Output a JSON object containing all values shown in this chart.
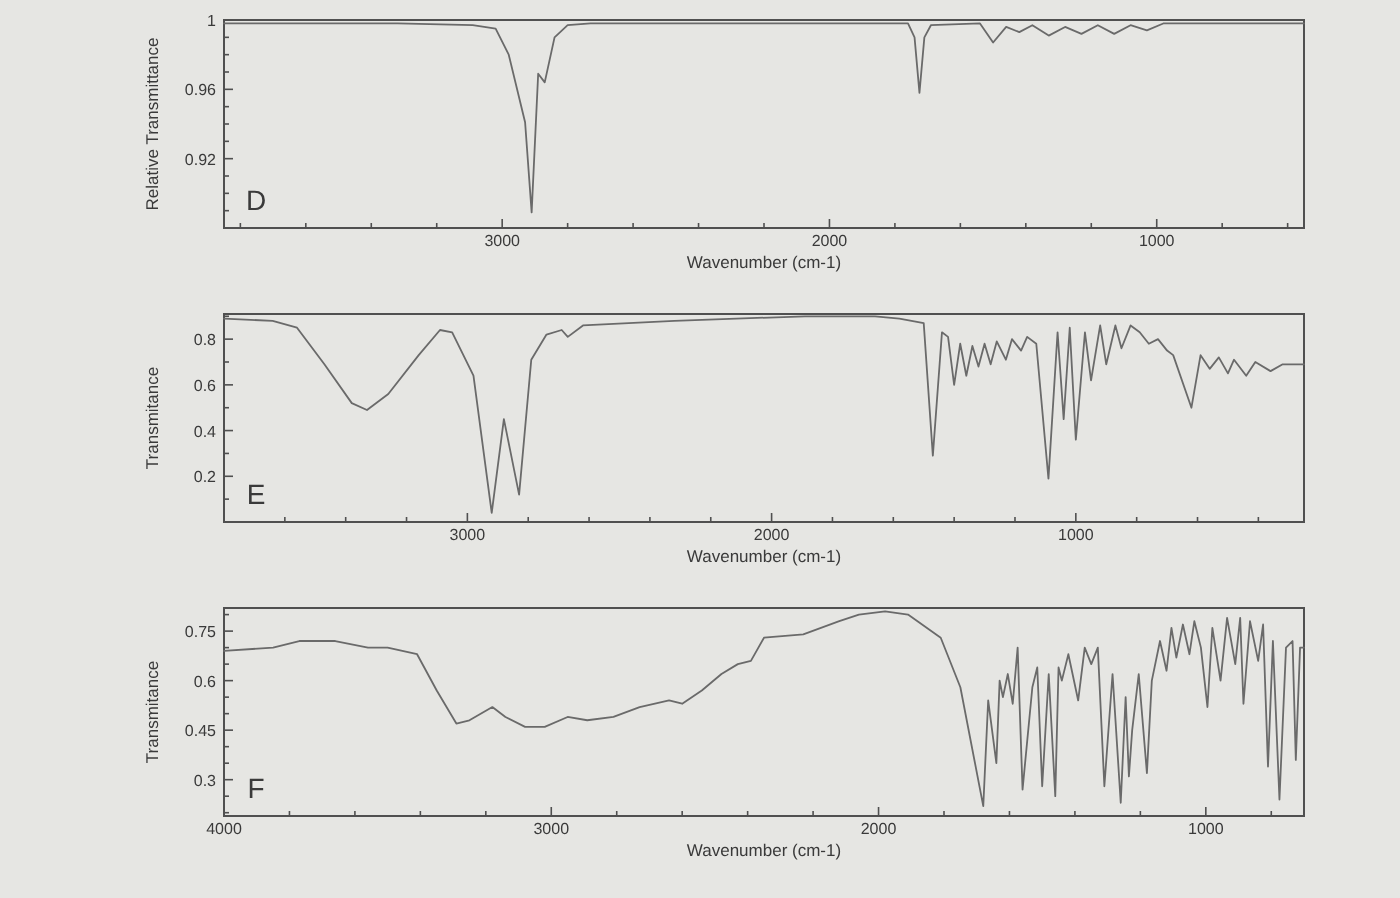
{
  "chart_data": [
    {
      "type": "line",
      "annotations": [
        "D"
      ],
      "xlabel": "Wavenumber (cm-1)",
      "ylabel": "Relative Transmittance",
      "xlim": [
        3850,
        550
      ],
      "xticks": [
        {
          "value": 3800,
          "label": null
        },
        {
          "value": 3600,
          "label": null
        },
        {
          "value": 3400,
          "label": null
        },
        {
          "value": 3200,
          "label": null
        },
        3000,
        {
          "value": 2800,
          "label": null
        },
        {
          "value": 2600,
          "label": null
        },
        {
          "value": 2400,
          "label": null
        },
        {
          "value": 2200,
          "label": null
        },
        2000,
        {
          "value": 1800,
          "label": null
        },
        {
          "value": 1600,
          "label": null
        },
        {
          "value": 1400,
          "label": null
        },
        {
          "value": 1200,
          "label": null
        },
        1000,
        {
          "value": 800,
          "label": null
        },
        {
          "value": 600,
          "label": null
        }
      ],
      "ylim": [
        0.88,
        1
      ],
      "yticks": [
        {
          "value": 0.89,
          "label": null
        },
        {
          "value": 0.9,
          "label": null
        },
        {
          "value": 0.91,
          "label": null
        },
        0.92,
        {
          "value": 0.93,
          "label": null
        },
        {
          "value": 0.94,
          "label": null
        },
        {
          "value": 0.95,
          "label": null
        },
        0.96,
        {
          "value": 0.97,
          "label": null
        },
        {
          "value": 0.98,
          "label": null
        },
        {
          "value": 0.99,
          "label": null
        },
        1
      ],
      "series": [
        {
          "color": "#6a6a6a",
          "x": [
            3850,
            3320,
            3090,
            3020,
            2980,
            2930,
            2910,
            2890,
            2870,
            2840,
            2800,
            2730,
            1760,
            1740,
            1725,
            1710,
            1690,
            1540,
            1500,
            1460,
            1420,
            1380,
            1330,
            1280,
            1230,
            1180,
            1130,
            1080,
            1030,
            980,
            550
          ],
          "values": [
            0.998,
            0.998,
            0.997,
            0.995,
            0.98,
            0.941,
            0.889,
            0.969,
            0.964,
            0.99,
            0.997,
            0.998,
            0.998,
            0.99,
            0.958,
            0.99,
            0.997,
            0.998,
            0.987,
            0.996,
            0.993,
            0.997,
            0.991,
            0.996,
            0.992,
            0.997,
            0.992,
            0.997,
            0.994,
            0.998,
            0.998
          ]
        }
      ]
    },
    {
      "type": "line",
      "annotations": [
        "E"
      ],
      "xlabel": "Wavenumber (cm-1)",
      "ylabel": "Transmitance",
      "xlim": [
        3800,
        250
      ],
      "xticks": [
        {
          "value": 3600,
          "label": null
        },
        {
          "value": 3400,
          "label": null
        },
        {
          "value": 3200,
          "label": null
        },
        3000,
        {
          "value": 2800,
          "label": null
        },
        {
          "value": 2600,
          "label": null
        },
        {
          "value": 2400,
          "label": null
        },
        {
          "value": 2200,
          "label": null
        },
        2000,
        {
          "value": 1800,
          "label": null
        },
        {
          "value": 1600,
          "label": null
        },
        {
          "value": 1400,
          "label": null
        },
        {
          "value": 1200,
          "label": null
        },
        1000,
        {
          "value": 800,
          "label": null
        },
        {
          "value": 600,
          "label": null
        },
        {
          "value": 400,
          "label": null
        }
      ],
      "ylim": [
        0,
        0.91
      ],
      "yticks": [
        {
          "value": 0.1,
          "label": null
        },
        0.2,
        {
          "value": 0.3,
          "label": null
        },
        0.4,
        {
          "value": 0.5,
          "label": null
        },
        0.6,
        {
          "value": 0.7,
          "label": null
        },
        0.8,
        {
          "value": 0.9,
          "label": null
        }
      ],
      "series": [
        {
          "color": "#6a6a6a",
          "x": [
            3800,
            3640,
            3560,
            3470,
            3380,
            3330,
            3260,
            3160,
            3090,
            3050,
            2980,
            2920,
            2880,
            2830,
            2790,
            2740,
            2690,
            2670,
            2620,
            2320,
            1890,
            1660,
            1580,
            1500,
            1470,
            1440,
            1420,
            1400,
            1380,
            1360,
            1340,
            1320,
            1300,
            1280,
            1260,
            1230,
            1210,
            1180,
            1160,
            1130,
            1090,
            1060,
            1040,
            1020,
            1000,
            970,
            950,
            920,
            900,
            870,
            850,
            820,
            790,
            760,
            730,
            700,
            680,
            620,
            590,
            560,
            530,
            500,
            480,
            440,
            410,
            360,
            320,
            250
          ],
          "values": [
            0.89,
            0.88,
            0.85,
            0.69,
            0.52,
            0.49,
            0.56,
            0.73,
            0.84,
            0.83,
            0.64,
            0.04,
            0.45,
            0.12,
            0.71,
            0.82,
            0.84,
            0.81,
            0.86,
            0.88,
            0.9,
            0.9,
            0.89,
            0.87,
            0.29,
            0.83,
            0.81,
            0.6,
            0.78,
            0.64,
            0.77,
            0.68,
            0.78,
            0.69,
            0.79,
            0.71,
            0.8,
            0.75,
            0.81,
            0.78,
            0.19,
            0.83,
            0.45,
            0.85,
            0.36,
            0.83,
            0.62,
            0.86,
            0.69,
            0.86,
            0.76,
            0.86,
            0.83,
            0.78,
            0.8,
            0.75,
            0.73,
            0.5,
            0.73,
            0.67,
            0.72,
            0.65,
            0.71,
            0.64,
            0.7,
            0.66,
            0.69,
            0.69
          ]
        }
      ]
    },
    {
      "type": "line",
      "annotations": [
        "F"
      ],
      "xlabel": "Wavenumber (cm-1)",
      "ylabel": "Transmitance",
      "xlim": [
        4000,
        700
      ],
      "xticks": [
        4000,
        {
          "value": 3800,
          "label": null
        },
        {
          "value": 3600,
          "label": null
        },
        {
          "value": 3400,
          "label": null
        },
        {
          "value": 3200,
          "label": null
        },
        3000,
        {
          "value": 2800,
          "label": null
        },
        {
          "value": 2600,
          "label": null
        },
        {
          "value": 2400,
          "label": null
        },
        {
          "value": 2200,
          "label": null
        },
        2000,
        {
          "value": 1800,
          "label": null
        },
        {
          "value": 1600,
          "label": null
        },
        {
          "value": 1400,
          "label": null
        },
        {
          "value": 1200,
          "label": null
        },
        1000,
        {
          "value": 800,
          "label": null
        }
      ],
      "ylim": [
        0.19,
        0.82
      ],
      "yticks": [
        {
          "value": 0.2,
          "label": null
        },
        {
          "value": 0.25,
          "label": null
        },
        0.3,
        {
          "value": 0.35,
          "label": null
        },
        {
          "value": 0.4,
          "label": null
        },
        0.45,
        {
          "value": 0.5,
          "label": null
        },
        {
          "value": 0.55,
          "label": null
        },
        0.6,
        {
          "value": 0.65,
          "label": null
        },
        {
          "value": 0.7,
          "label": null
        },
        0.75,
        {
          "value": 0.8,
          "label": null
        }
      ],
      "series": [
        {
          "color": "#6a6a6a",
          "x": [
            4000,
            3850,
            3770,
            3660,
            3560,
            3500,
            3410,
            3350,
            3290,
            3250,
            3180,
            3140,
            3080,
            3020,
            2950,
            2890,
            2810,
            2730,
            2640,
            2600,
            2540,
            2480,
            2430,
            2390,
            2350,
            2230,
            2120,
            2060,
            1980,
            1910,
            1810,
            1750,
            1680,
            1665,
            1640,
            1630,
            1620,
            1605,
            1590,
            1575,
            1560,
            1530,
            1515,
            1500,
            1480,
            1460,
            1450,
            1440,
            1420,
            1390,
            1370,
            1350,
            1330,
            1310,
            1285,
            1260,
            1245,
            1235,
            1225,
            1205,
            1180,
            1165,
            1140,
            1120,
            1105,
            1090,
            1070,
            1050,
            1035,
            1015,
            995,
            980,
            955,
            935,
            910,
            895,
            885,
            865,
            840,
            825,
            810,
            795,
            775,
            755,
            735,
            725,
            712,
            700
          ],
          "values": [
            0.69,
            0.7,
            0.72,
            0.72,
            0.7,
            0.7,
            0.68,
            0.57,
            0.47,
            0.48,
            0.52,
            0.49,
            0.46,
            0.46,
            0.49,
            0.48,
            0.49,
            0.52,
            0.54,
            0.53,
            0.57,
            0.62,
            0.65,
            0.66,
            0.73,
            0.74,
            0.78,
            0.8,
            0.81,
            0.8,
            0.73,
            0.58,
            0.22,
            0.54,
            0.35,
            0.6,
            0.55,
            0.62,
            0.53,
            0.7,
            0.27,
            0.58,
            0.64,
            0.28,
            0.62,
            0.25,
            0.64,
            0.6,
            0.68,
            0.54,
            0.7,
            0.65,
            0.7,
            0.28,
            0.62,
            0.23,
            0.55,
            0.31,
            0.45,
            0.62,
            0.32,
            0.6,
            0.72,
            0.63,
            0.76,
            0.67,
            0.77,
            0.68,
            0.78,
            0.7,
            0.52,
            0.76,
            0.6,
            0.79,
            0.65,
            0.79,
            0.53,
            0.78,
            0.66,
            0.77,
            0.34,
            0.72,
            0.24,
            0.7,
            0.72,
            0.36,
            0.7,
            0.7
          ]
        }
      ]
    }
  ]
}
